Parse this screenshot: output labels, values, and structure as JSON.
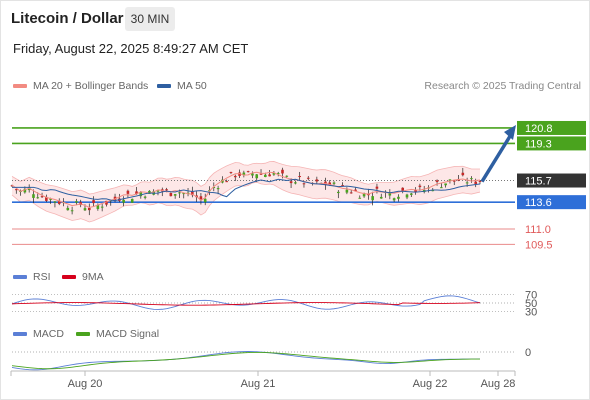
{
  "header": {
    "title": "Litecoin / Dollar",
    "interval": "30 MIN",
    "datetime": "Friday, August 22, 2025 8:49:27 AM CET"
  },
  "legend": {
    "items": [
      {
        "label": "MA 20 + Bollinger Bands",
        "color": "#f28b82"
      },
      {
        "label": "MA 50",
        "color": "#2e5fa1"
      }
    ],
    "credit": "Research © 2025 Trading Central"
  },
  "colors": {
    "green": "#4aa31e",
    "red_level": "#e05a5a",
    "blue_level": "#2e6fd8",
    "dark_tag": "#333333",
    "arrow": "#2e5fa1",
    "candle_up": "#4aa31e",
    "candle_down": "#c62828"
  },
  "chart_data": {
    "type": "candlestick",
    "price_ylim": [
      107.5,
      124.0
    ],
    "levels": [
      {
        "value": 120.8,
        "label": "120.8",
        "style": "resistance"
      },
      {
        "value": 119.3,
        "label": "119.3",
        "style": "resistance"
      },
      {
        "value": 115.7,
        "label": "115.7",
        "style": "current"
      },
      {
        "value": 113.6,
        "label": "113.6",
        "style": "pivot"
      },
      {
        "value": 111.0,
        "label": "111.0",
        "style": "support"
      },
      {
        "value": 109.5,
        "label": "109.5",
        "style": "support"
      }
    ],
    "forecast_arrow": {
      "from": 115.6,
      "to": 120.7
    },
    "x_ticks": [
      "Aug 20",
      "Aug 21",
      "Aug 22",
      "Aug 28"
    ],
    "price_path": [
      115.2,
      114.6,
      114.9,
      114.4,
      114.0,
      113.8,
      113.5,
      113.2,
      113.4,
      113.0,
      113.3,
      113.6,
      113.9,
      114.3,
      114.2,
      114.6,
      114.4,
      114.8,
      114.5,
      114.7,
      114.4,
      114.3,
      113.6,
      114.9,
      115.5,
      116.0,
      116.4,
      116.1,
      116.5,
      116.3,
      116.5,
      116.1,
      115.8,
      115.7,
      115.5,
      115.3,
      115.4,
      115.2,
      114.9,
      114.8,
      114.5,
      114.3,
      114.6,
      114.5,
      114.4,
      114.6,
      114.8,
      114.7,
      114.9,
      115.3,
      115.5,
      115.7,
      115.8,
      115.6,
      115.7
    ],
    "rsi": {
      "name": "RSI",
      "signal_name": "9MA",
      "levels": [
        70,
        50,
        30
      ],
      "ylim": [
        20,
        80
      ]
    },
    "macd": {
      "name": "MACD",
      "signal_name": "MACD Signal",
      "zero_label": "0"
    }
  }
}
